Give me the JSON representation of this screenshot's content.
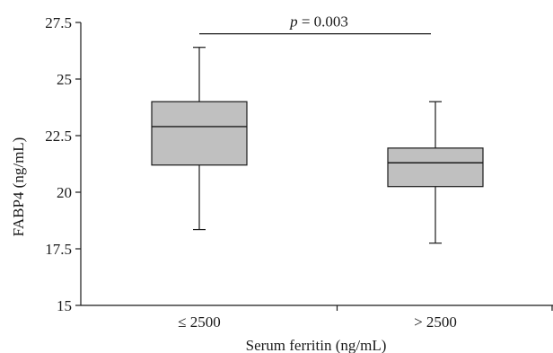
{
  "chart_data": {
    "type": "box",
    "title": "",
    "xlabel": "Serum ferritin (ng/mL)",
    "ylabel": "FABP4 (ng/mL)",
    "ylim": [
      15,
      27.5
    ],
    "yticks": [
      15,
      17.5,
      20,
      22.5,
      25,
      27.5
    ],
    "ytick_labels": [
      "15",
      "17.5",
      "20",
      "22.5",
      "25",
      "27.5"
    ],
    "categories": [
      "≤ 2500",
      "> 2500"
    ],
    "boxes": [
      {
        "category": "≤ 2500",
        "min": 18.35,
        "q1": 21.2,
        "median": 22.9,
        "q3": 24.0,
        "max": 26.4
      },
      {
        "category": "> 2500",
        "min": 17.75,
        "q1": 20.25,
        "median": 21.3,
        "q3": 21.95,
        "max": 24.0
      }
    ],
    "box_fill": "#c0c0c0",
    "line_color": "#1a1a1a",
    "grid": false,
    "annotation": {
      "p_symbol": "p",
      "p_text": " = 0.003",
      "y_value": 27.0
    }
  }
}
